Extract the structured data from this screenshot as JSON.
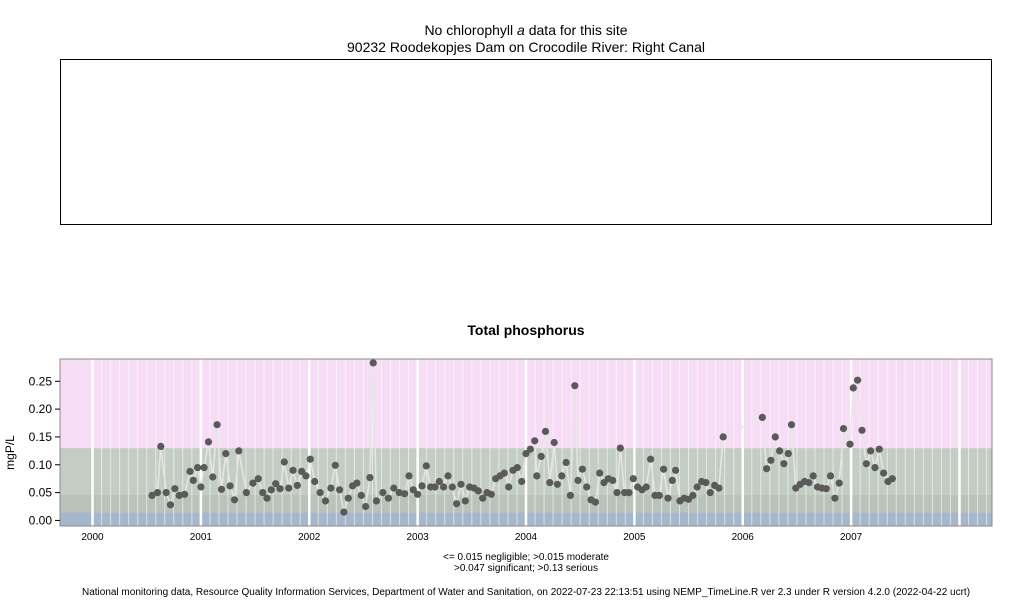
{
  "top_panel": {
    "message_pre": "No chlorophyll",
    "message_em": "a",
    "message_post": "data for this site",
    "site": "90232 Roodekopjes Dam on Crocodile River: Right Canal"
  },
  "legend": {
    "line1": "<= 0.015 negligible; >0.015 moderate",
    "line2": ">0.047 significant; >0.13 serious"
  },
  "footer": "National monitoring data, Resource Quality Information Services, Department of Water and Sanitation, on 2022-07-23 22:13:51 using NEMP_TimeLine.R ver 2.3 under R version 4.2.0 (2022-04-22 ucrt)",
  "colors": {
    "negligible": "#a7b7cb",
    "moderate": "#b9c3b9",
    "significant": "#c4cdc4",
    "serious": "#f7dcf6",
    "points": "#5a5a5a",
    "line": "#e6e6e6"
  },
  "chart_data": {
    "type": "scatter",
    "title": "Total phosphorus",
    "ylabel": "mgP/L",
    "xlim": [
      1999.7,
      2008.3
    ],
    "ylim": [
      -0.01,
      0.29
    ],
    "x_ticks": [
      "2000",
      "2001",
      "2002",
      "2003",
      "2004",
      "2005",
      "2006",
      "2007"
    ],
    "y_ticks": [
      "0.00",
      "0.05",
      "0.10",
      "0.15",
      "0.20",
      "0.25"
    ],
    "bands": [
      {
        "from": -0.01,
        "to": 0.015,
        "label": "negligible"
      },
      {
        "from": 0.015,
        "to": 0.047,
        "label": "moderate"
      },
      {
        "from": 0.047,
        "to": 0.13,
        "label": "significant"
      },
      {
        "from": 0.13,
        "to": 0.29,
        "label": "serious"
      }
    ],
    "series": [
      {
        "points": [
          [
            2000.55,
            0.045
          ],
          [
            2000.6,
            0.05
          ],
          [
            2000.63,
            0.133
          ],
          [
            2000.68,
            0.05
          ],
          [
            2000.72,
            0.028
          ],
          [
            2000.76,
            0.057
          ],
          [
            2000.8,
            0.045
          ],
          [
            2000.85,
            0.047
          ],
          [
            2000.9,
            0.088
          ],
          [
            2000.93,
            0.072
          ],
          [
            2000.97,
            0.095
          ],
          [
            2001.0,
            0.06
          ],
          [
            2001.03,
            0.095
          ],
          [
            2001.07,
            0.141
          ],
          [
            2001.11,
            0.078
          ],
          [
            2001.15,
            0.172
          ],
          [
            2001.19,
            0.056
          ],
          [
            2001.23,
            0.12
          ],
          [
            2001.27,
            0.062
          ],
          [
            2001.31,
            0.037
          ],
          [
            2001.35,
            0.125
          ],
          [
            2001.42,
            0.05
          ],
          [
            2001.48,
            0.067
          ],
          [
            2001.53,
            0.075
          ],
          [
            2001.57,
            0.05
          ],
          [
            2001.61,
            0.04
          ],
          [
            2001.65,
            0.055
          ],
          [
            2001.69,
            0.066
          ],
          [
            2001.73,
            0.057
          ],
          [
            2001.77,
            0.105
          ],
          [
            2001.81,
            0.058
          ],
          [
            2001.85,
            0.09
          ],
          [
            2001.89,
            0.063
          ],
          [
            2001.93,
            0.088
          ],
          [
            2001.97,
            0.08
          ],
          [
            2002.01,
            0.11
          ],
          [
            2002.05,
            0.07
          ],
          [
            2002.1,
            0.05
          ],
          [
            2002.15,
            0.035
          ],
          [
            2002.2,
            0.058
          ],
          [
            2002.24,
            0.099
          ],
          [
            2002.28,
            0.055
          ],
          [
            2002.32,
            0.015
          ],
          [
            2002.36,
            0.04
          ],
          [
            2002.4,
            0.062
          ],
          [
            2002.44,
            0.067
          ],
          [
            2002.48,
            0.045
          ],
          [
            2002.52,
            0.025
          ],
          [
            2002.56,
            0.077
          ],
          [
            2002.59,
            0.283
          ],
          [
            2002.62,
            0.035
          ],
          [
            2002.68,
            0.05
          ],
          [
            2002.73,
            0.04
          ],
          [
            2002.78,
            0.058
          ],
          [
            2002.83,
            0.05
          ],
          [
            2002.88,
            0.048
          ],
          [
            2002.92,
            0.08
          ],
          [
            2002.96,
            0.055
          ],
          [
            2003.0,
            0.047
          ],
          [
            2003.04,
            0.062
          ],
          [
            2003.08,
            0.098
          ],
          [
            2003.12,
            0.06
          ],
          [
            2003.16,
            0.06
          ],
          [
            2003.2,
            0.07
          ],
          [
            2003.24,
            0.06
          ],
          [
            2003.28,
            0.08
          ],
          [
            2003.32,
            0.06
          ],
          [
            2003.36,
            0.03
          ],
          [
            2003.4,
            0.065
          ],
          [
            2003.44,
            0.035
          ],
          [
            2003.48,
            0.06
          ],
          [
            2003.52,
            0.058
          ],
          [
            2003.56,
            0.053
          ],
          [
            2003.6,
            0.04
          ],
          [
            2003.64,
            0.05
          ],
          [
            2003.68,
            0.047
          ],
          [
            2003.72,
            0.075
          ],
          [
            2003.76,
            0.08
          ],
          [
            2003.8,
            0.085
          ],
          [
            2003.84,
            0.06
          ],
          [
            2003.88,
            0.09
          ],
          [
            2003.92,
            0.095
          ],
          [
            2003.96,
            0.07
          ],
          [
            2004.0,
            0.12
          ],
          [
            2004.04,
            0.128
          ],
          [
            2004.08,
            0.143
          ],
          [
            2004.1,
            0.08
          ],
          [
            2004.14,
            0.115
          ],
          [
            2004.18,
            0.16
          ],
          [
            2004.22,
            0.068
          ],
          [
            2004.26,
            0.14
          ],
          [
            2004.29,
            0.065
          ],
          [
            2004.33,
            0.08
          ],
          [
            2004.37,
            0.104
          ],
          [
            2004.41,
            0.045
          ],
          [
            2004.45,
            0.242
          ],
          [
            2004.48,
            0.072
          ],
          [
            2004.52,
            0.092
          ],
          [
            2004.56,
            0.06
          ],
          [
            2004.6,
            0.037
          ],
          [
            2004.64,
            0.033
          ],
          [
            2004.68,
            0.085
          ],
          [
            2004.72,
            0.068
          ],
          [
            2004.76,
            0.075
          ],
          [
            2004.8,
            0.072
          ],
          [
            2004.84,
            0.05
          ],
          [
            2004.87,
            0.13
          ],
          [
            2004.91,
            0.05
          ],
          [
            2004.95,
            0.05
          ],
          [
            2004.99,
            0.075
          ],
          [
            2005.03,
            0.06
          ],
          [
            2005.07,
            0.055
          ],
          [
            2005.11,
            0.06
          ],
          [
            2005.15,
            0.11
          ],
          [
            2005.19,
            0.045
          ],
          [
            2005.23,
            0.045
          ],
          [
            2005.27,
            0.092
          ],
          [
            2005.31,
            0.04
          ],
          [
            2005.35,
            0.072
          ],
          [
            2005.38,
            0.09
          ],
          [
            2005.42,
            0.035
          ],
          [
            2005.46,
            0.04
          ],
          [
            2005.5,
            0.038
          ],
          [
            2005.54,
            0.045
          ],
          [
            2005.58,
            0.06
          ],
          [
            2005.62,
            0.07
          ],
          [
            2005.66,
            0.068
          ],
          [
            2005.7,
            0.05
          ],
          [
            2005.74,
            0.063
          ],
          [
            2005.78,
            0.058
          ],
          [
            2005.82,
            0.15
          ],
          [
            2006.18,
            0.185
          ],
          [
            2006.22,
            0.093
          ],
          [
            2006.26,
            0.108
          ],
          [
            2006.3,
            0.15
          ],
          [
            2006.34,
            0.125
          ],
          [
            2006.38,
            0.102
          ],
          [
            2006.42,
            0.12
          ],
          [
            2006.45,
            0.172
          ],
          [
            2006.49,
            0.058
          ],
          [
            2006.53,
            0.065
          ],
          [
            2006.57,
            0.07
          ],
          [
            2006.61,
            0.068
          ],
          [
            2006.65,
            0.08
          ],
          [
            2006.69,
            0.06
          ],
          [
            2006.73,
            0.058
          ],
          [
            2006.77,
            0.057
          ],
          [
            2006.81,
            0.08
          ],
          [
            2006.85,
            0.04
          ],
          [
            2006.89,
            0.067
          ],
          [
            2006.93,
            0.165
          ],
          [
            2006.99,
            0.137
          ],
          [
            2007.02,
            0.238
          ],
          [
            2007.06,
            0.252
          ],
          [
            2007.1,
            0.162
          ],
          [
            2007.14,
            0.102
          ],
          [
            2007.18,
            0.125
          ],
          [
            2007.22,
            0.095
          ],
          [
            2007.26,
            0.128
          ],
          [
            2007.3,
            0.085
          ],
          [
            2007.34,
            0.07
          ],
          [
            2007.38,
            0.075
          ]
        ]
      }
    ]
  }
}
